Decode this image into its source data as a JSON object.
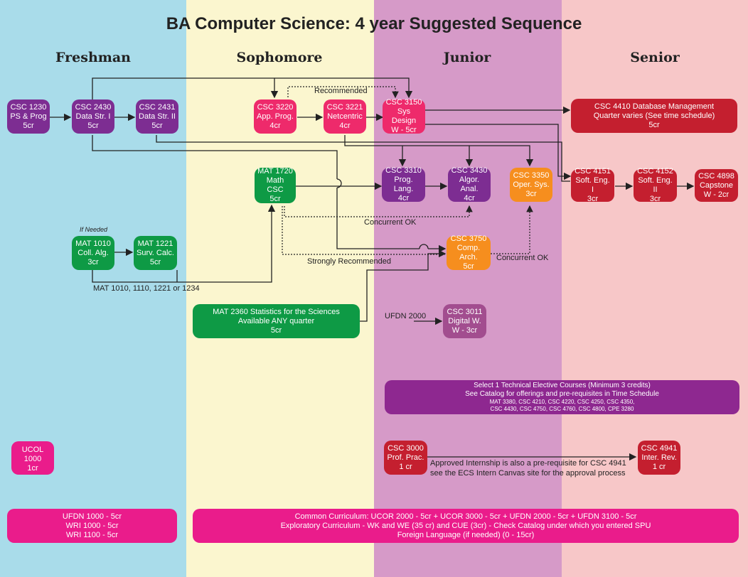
{
  "title": "BA Computer Science: 4 year Suggested Sequence",
  "years": [
    "Freshman",
    "Sophomore",
    "Junior",
    "Senior"
  ],
  "courses": {
    "csc1230": [
      "CSC 1230",
      "PS & Prog",
      "5cr"
    ],
    "csc2430": [
      "CSC 2430",
      "Data Str. I",
      "5cr"
    ],
    "csc2431": [
      "CSC 2431",
      "Data Str. II",
      "5cr"
    ],
    "csc3220": [
      "CSC 3220",
      "App. Prog.",
      "4cr"
    ],
    "csc3221": [
      "CSC 3221",
      "Netcentric",
      "4cr"
    ],
    "csc3150": [
      "CSC 3150",
      "Sys Design",
      "W - 5cr"
    ],
    "csc4410": [
      "CSC 4410 Database Management",
      "Quarter varies (See time schedule)",
      "5cr"
    ],
    "mat1720": [
      "MAT 1720",
      "Math CSC",
      "5cr"
    ],
    "csc3310": [
      "CSC 3310",
      "Prog. Lang.",
      "4cr"
    ],
    "csc3430": [
      "CSC 3430",
      "Algor. Anal.",
      "4cr"
    ],
    "csc3350": [
      "CSC 3350",
      "Oper. Sys.",
      "3cr"
    ],
    "csc4151": [
      "CSC 4151",
      "Soft. Eng. I",
      "3cr"
    ],
    "csc4152": [
      "CSC 4152",
      "Soft. Eng. II",
      "3cr"
    ],
    "csc4898": [
      "CSC 4898",
      "Capstone",
      "W - 2cr"
    ],
    "mat1010": [
      "MAT 1010",
      "Coll. Alg.",
      "3cr"
    ],
    "mat1221": [
      "MAT 1221",
      "Surv. Calc.",
      "5cr"
    ],
    "csc3750": [
      "CSC 3750",
      "Comp. Arch.",
      "5cr"
    ],
    "mat2360": [
      "MAT 2360 Statistics for the Sciences",
      "Available ANY quarter",
      "5cr"
    ],
    "csc3011": [
      "CSC 3011",
      "Digital W.",
      "W - 3cr"
    ],
    "ucol1000": [
      "UCOL 1000",
      "1cr"
    ],
    "csc3000": [
      "CSC 3000",
      "Prof. Prac.",
      "1 cr"
    ],
    "csc4941": [
      "CSC 4941",
      "Inter. Rev.",
      "1 cr"
    ]
  },
  "elective": {
    "line1": "Select 1 Technical Elective Courses (Minimum 3 credits)",
    "line2": "See Catalog for offerings and pre-requisites in Time Schedule",
    "line3": "MAT 3380, CSC 4210, CSC 4220, CSC 4250, CSC 4350,",
    "line4": "CSC 4430, CSC 4750, CSC 4760, CSC 4800, CPE 3280"
  },
  "freshman_gen": [
    "UFDN 1000 - 5cr",
    "WRI 1000 - 5cr",
    "WRI 1100 - 5cr"
  ],
  "common": [
    "Common Curriculum: UCOR 2000 - 5cr + UCOR 3000 - 5cr + UFDN 2000 - 5cr + UFDN 3100 - 5cr",
    "Exploratory Curriculum - WK and WE (35 cr) and CUE (3cr) - Check Catalog under which you entered SPU",
    "Foreign Language (if needed) (0 - 15cr)"
  ],
  "labels": {
    "recommended": "Recommended",
    "if_needed": "If Needed",
    "concurrent_ok_1": "Concurrent OK",
    "concurrent_ok_2": "Concurrent OK",
    "strongly_recommended": "Strongly Recommended",
    "mat_options": "MAT 1010, 1110, 1221 or 1234",
    "ufdn2000": "UFDN 2000",
    "internship_1": "Approved Internship is also a pre-requisite for CSC 4941",
    "internship_2": "see the ECS Intern Canvas site for the approval process"
  }
}
